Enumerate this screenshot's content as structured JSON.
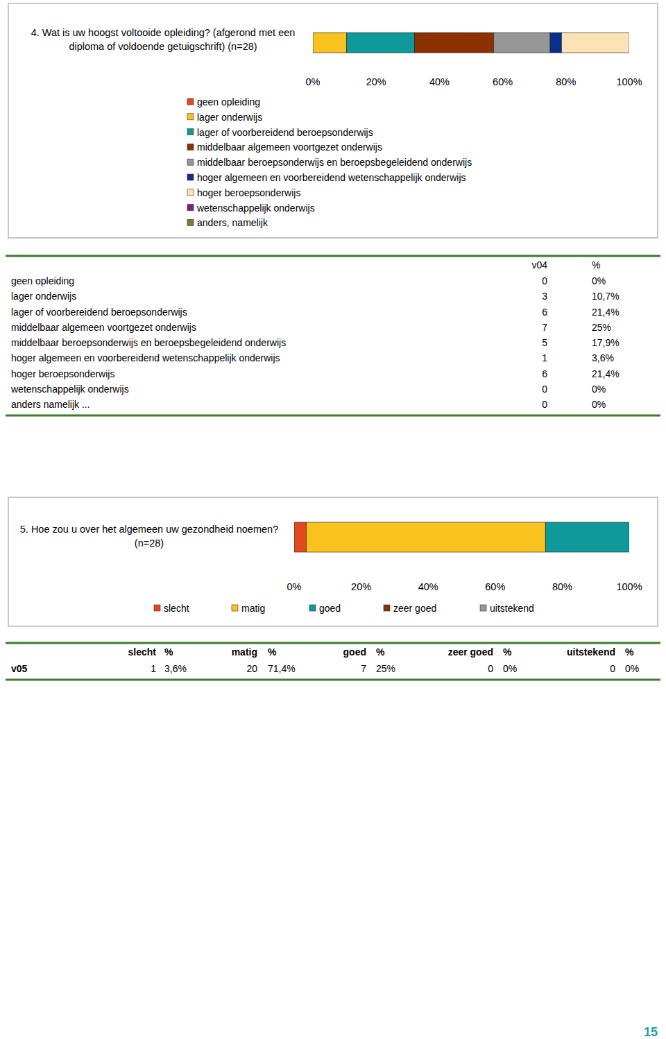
{
  "chart_data": [
    {
      "type": "bar",
      "title": "4. Wat is uw hoogst voltooide opleiding? (afgerond met een diploma of voldoende getuigschrift) (n=28)",
      "orientation": "horizontal",
      "stacked": true,
      "legend": "bottom",
      "categories": [
        null
      ],
      "xlim": [
        0,
        100
      ],
      "xticks": [
        {
          "value": 0,
          "label": "0%"
        },
        {
          "value": 20,
          "label": "20%"
        },
        {
          "value": 40,
          "label": "40%"
        },
        {
          "value": 60,
          "label": "60%"
        },
        {
          "value": 80,
          "label": "80%"
        },
        {
          "value": 100,
          "label": "100%"
        }
      ],
      "series": [
        {
          "name": "geen opleiding",
          "color": "#e04a1e",
          "values": [
            0
          ]
        },
        {
          "name": "lager onderwijs",
          "color": "#f9c31f",
          "values": [
            10.7
          ]
        },
        {
          "name": "lager of voorbereidend beroepsonderwijs",
          "color": "#0e9a9a",
          "values": [
            21.4
          ]
        },
        {
          "name": "middelbaar algemeen voortgezet onderwijs",
          "color": "#8b3200",
          "values": [
            25
          ]
        },
        {
          "name": "middelbaar beroepsonderwijs en beroepsbegeleidend onderwijs",
          "color": "#969696",
          "values": [
            17.9
          ]
        },
        {
          "name": "hoger algemeen en voorbereidend wetenschappelijk onderwijs",
          "color": "#0a2f8c",
          "values": [
            3.6
          ]
        },
        {
          "name": "hoger beroepsonderwijs",
          "color": "#fbe3b5",
          "values": [
            21.4
          ]
        },
        {
          "name": "wetenschappelijk onderwijs",
          "color": "#8b1a6b",
          "values": [
            0
          ]
        },
        {
          "name": "anders, namelijk",
          "color": "#7f7a3a",
          "values": [
            0
          ]
        }
      ]
    },
    {
      "type": "bar",
      "title": "5. Hoe zou u over het algemeen uw gezondheid noemen? (n=28)",
      "orientation": "horizontal",
      "stacked": true,
      "legend": "bottom",
      "categories": [
        null
      ],
      "xlim": [
        0,
        100
      ],
      "xticks": [
        {
          "value": 0,
          "label": "0%"
        },
        {
          "value": 20,
          "label": "20%"
        },
        {
          "value": 40,
          "label": "40%"
        },
        {
          "value": 60,
          "label": "60%"
        },
        {
          "value": 80,
          "label": "80%"
        },
        {
          "value": 100,
          "label": "100%"
        }
      ],
      "series": [
        {
          "name": "slecht",
          "color": "#e04a1e",
          "values": [
            3.6
          ]
        },
        {
          "name": "matig",
          "color": "#f9c31f",
          "values": [
            71.4
          ]
        },
        {
          "name": "goed",
          "color": "#0e9a9a",
          "values": [
            25
          ]
        },
        {
          "name": "zeer goed",
          "color": "#8b3200",
          "values": [
            0
          ]
        },
        {
          "name": "uitstekend",
          "color": "#969696",
          "values": [
            0
          ]
        }
      ]
    }
  ],
  "tables": [
    {
      "columns": [
        "v04",
        "%"
      ],
      "rows": [
        {
          "label": "geen opleiding",
          "cells": [
            0,
            "0%"
          ]
        },
        {
          "label": "lager onderwijs",
          "cells": [
            3,
            "10,7%"
          ]
        },
        {
          "label": "lager of voorbereidend beroepsonderwijs",
          "cells": [
            6,
            "21,4%"
          ]
        },
        {
          "label": "middelbaar algemeen voortgezet onderwijs",
          "cells": [
            7,
            "25%"
          ]
        },
        {
          "label": "middelbaar beroepsonderwijs en beroepsbegeleidend onderwijs",
          "cells": [
            5,
            "17,9%"
          ]
        },
        {
          "label": "hoger algemeen en voorbereidend wetenschappelijk onderwijs",
          "cells": [
            1,
            "3,6%"
          ]
        },
        {
          "label": "hoger beroepsonderwijs",
          "cells": [
            6,
            "21,4%"
          ]
        },
        {
          "label": "wetenschappelijk onderwijs",
          "cells": [
            0,
            "0%"
          ]
        },
        {
          "label": "anders  namelijk ...",
          "cells": [
            0,
            "0%"
          ]
        }
      ]
    },
    {
      "columns": [
        "slecht",
        "%",
        "matig",
        "%",
        "goed",
        "%",
        "zeer goed",
        "%",
        "uitstekend",
        "%"
      ],
      "rows": [
        {
          "label": "v05",
          "cells": [
            1,
            "3,6%",
            20,
            "71,4%",
            7,
            "25%",
            0,
            "0%",
            0,
            "0%"
          ]
        }
      ]
    }
  ],
  "page_number": "15"
}
